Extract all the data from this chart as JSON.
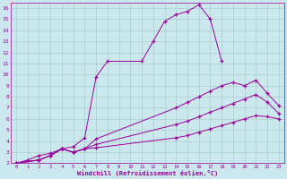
{
  "background_color": "#cce8ef",
  "grid_color": "#aacccc",
  "line_color": "#990099",
  "xlabel": "Windchill (Refroidissement éolien,°C)",
  "xlim": [
    -0.5,
    23.5
  ],
  "ylim": [
    2,
    16.5
  ],
  "xticks": [
    0,
    1,
    2,
    3,
    4,
    5,
    6,
    7,
    8,
    9,
    10,
    11,
    12,
    13,
    14,
    15,
    16,
    17,
    18,
    19,
    20,
    21,
    22,
    23
  ],
  "yticks": [
    2,
    3,
    4,
    5,
    6,
    7,
    8,
    9,
    10,
    11,
    12,
    13,
    14,
    15,
    16
  ],
  "line1_x": [
    0,
    1,
    2,
    3,
    4,
    5,
    6,
    7,
    8,
    11,
    12,
    13,
    14,
    15,
    16,
    17,
    18
  ],
  "line1_y": [
    2,
    2.3,
    2.7,
    2.9,
    3.3,
    3.5,
    4.3,
    9.8,
    11.2,
    11.2,
    13.0,
    14.8,
    15.4,
    15.7,
    16.3,
    15.0,
    11.2
  ],
  "line2_x": [
    0,
    2,
    3,
    4,
    5,
    6,
    7,
    14,
    15,
    16,
    17,
    18,
    19,
    20,
    21,
    22,
    23
  ],
  "line2_y": [
    2,
    2.3,
    2.7,
    3.3,
    3.0,
    3.3,
    4.2,
    7.0,
    7.5,
    8.0,
    8.5,
    9.0,
    9.3,
    9.0,
    9.5,
    8.3,
    7.2
  ],
  "line3_x": [
    0,
    2,
    3,
    4,
    5,
    6,
    7,
    14,
    15,
    16,
    17,
    18,
    19,
    20,
    21,
    22,
    23
  ],
  "line3_y": [
    2,
    2.3,
    2.7,
    3.3,
    3.0,
    3.3,
    3.7,
    5.5,
    5.8,
    6.2,
    6.6,
    7.0,
    7.4,
    7.8,
    8.2,
    7.5,
    6.5
  ],
  "line4_x": [
    0,
    2,
    3,
    4,
    5,
    6,
    7,
    14,
    15,
    16,
    17,
    18,
    19,
    20,
    21,
    22,
    23
  ],
  "line4_y": [
    2,
    2.3,
    2.7,
    3.3,
    3.0,
    3.3,
    3.4,
    4.3,
    4.5,
    4.8,
    5.1,
    5.4,
    5.7,
    6.0,
    6.3,
    6.2,
    6.0
  ]
}
